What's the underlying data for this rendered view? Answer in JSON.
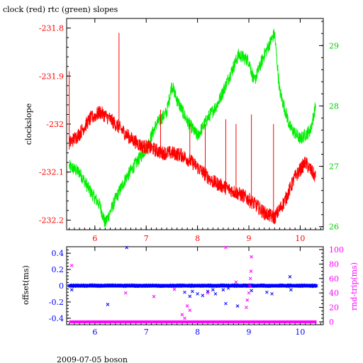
{
  "title": "clock (red) rtc (green) slopes",
  "footer": "2009-07-05 boson",
  "colors": {
    "clock": "#ff0000",
    "rtc": "#00ee00",
    "offset": "#0000ff",
    "rtt": "#ff00ff",
    "axis": "#000000"
  },
  "chart_data": [
    {
      "type": "line",
      "ylabel": "clockslope",
      "xlim": [
        5.45,
        10.45
      ],
      "ylim_left": [
        -232.22,
        -231.78
      ],
      "ylim_right": [
        25.95,
        29.45
      ],
      "x_ticks": [
        6,
        7,
        8,
        9,
        10
      ],
      "x_tick_labels": [
        "6",
        "7",
        "8",
        "9",
        "10"
      ],
      "y_left_ticks": [
        -231.8,
        -231.9,
        -232,
        -232.1,
        -232.2
      ],
      "y_left_tick_labels": [
        "-231.8",
        "-231.9",
        "-232",
        "-232.1",
        "-232.2"
      ],
      "y_right_ticks": [
        26,
        27,
        28,
        29
      ],
      "y_right_tick_labels": [
        "26",
        "27",
        "28",
        "29"
      ],
      "series": [
        {
          "axis": "left",
          "color_key": "clock",
          "x": [
            5.5,
            5.7,
            5.9,
            6.1,
            6.3,
            6.5,
            6.7,
            6.9,
            7.1,
            7.3,
            7.5,
            7.7,
            7.9,
            8.1,
            8.3,
            8.5,
            8.7,
            8.9,
            9.1,
            9.3,
            9.5,
            9.7,
            9.9,
            10.1,
            10.3
          ],
          "y": [
            -232.04,
            -232.02,
            -231.99,
            -231.975,
            -231.99,
            -232.01,
            -232.03,
            -232.045,
            -232.05,
            -232.06,
            -232.06,
            -232.065,
            -232.08,
            -232.1,
            -232.12,
            -232.13,
            -232.14,
            -232.15,
            -232.165,
            -232.185,
            -232.195,
            -232.16,
            -232.11,
            -232.08,
            -232.11
          ],
          "spikes": [
            {
              "x": 5.5,
              "y": -231.89
            },
            {
              "x": 6.47,
              "y": -231.81
            },
            {
              "x": 7.28,
              "y": -231.97
            },
            {
              "x": 7.85,
              "y": -232.0
            },
            {
              "x": 8.15,
              "y": -232.0
            },
            {
              "x": 8.55,
              "y": -231.99
            },
            {
              "x": 8.75,
              "y": -232.0
            },
            {
              "x": 9.05,
              "y": -231.98
            },
            {
              "x": 9.48,
              "y": -232.0
            }
          ]
        },
        {
          "axis": "right",
          "color_key": "rtc",
          "x": [
            5.5,
            5.7,
            5.9,
            6.1,
            6.2,
            6.4,
            6.6,
            6.8,
            7.0,
            7.2,
            7.4,
            7.5,
            7.6,
            7.8,
            8.0,
            8.2,
            8.4,
            8.6,
            8.8,
            9.0,
            9.1,
            9.3,
            9.5,
            9.6,
            9.8,
            10.0,
            10.2,
            10.3
          ],
          "y": [
            27.0,
            26.9,
            26.6,
            26.35,
            26.05,
            26.45,
            26.8,
            27.05,
            27.3,
            27.7,
            27.9,
            28.35,
            28.1,
            27.75,
            27.5,
            27.8,
            28.05,
            28.45,
            28.85,
            28.75,
            28.4,
            28.85,
            29.2,
            28.25,
            27.65,
            27.45,
            27.6,
            28.0
          ]
        }
      ]
    },
    {
      "type": "scatter",
      "ylabel_left": "offset(ms)",
      "ylabel_right": "rnd-trip(ms)",
      "xlim": [
        5.45,
        10.45
      ],
      "ylim_left": [
        -0.48,
        0.48
      ],
      "ylim_right": [
        -4,
        104
      ],
      "x_ticks": [
        6,
        7,
        8,
        9,
        10
      ],
      "x_tick_labels": [
        "6",
        "7",
        "8",
        "9",
        "10"
      ],
      "y_left_ticks": [
        0.4,
        0.2,
        0,
        -0.2,
        -0.4
      ],
      "y_left_tick_labels": [
        "0.4",
        "0.2",
        "0",
        "-0.2",
        "-0.4"
      ],
      "y_right_ticks": [
        0,
        20,
        40,
        60,
        80,
        100
      ],
      "y_right_tick_labels": [
        "0",
        "20",
        "40",
        "60",
        "80",
        "100"
      ],
      "series": [
        {
          "axis": "left",
          "color_key": "offset",
          "baseline": 0,
          "outliers_x": [
            5.55,
            6.25,
            6.62,
            7.75,
            7.85,
            7.9,
            8.0,
            8.1,
            8.2,
            8.3,
            8.35,
            8.5,
            8.55,
            8.6,
            8.78,
            9.05,
            9.35,
            9.45,
            9.8,
            9.82
          ],
          "outliers_y": [
            -0.05,
            -0.23,
            0.47,
            -0.08,
            -0.13,
            -0.07,
            -0.1,
            -0.12,
            -0.07,
            -0.05,
            -0.1,
            -0.05,
            -0.22,
            -0.03,
            -0.25,
            -0.06,
            -0.08,
            -0.1,
            0.11,
            -0.05
          ]
        },
        {
          "axis": "right",
          "color_key": "rtt",
          "baseline": 0,
          "outliers_x": [
            5.55,
            6.6,
            7.15,
            7.55,
            7.7,
            7.75,
            7.8,
            7.85,
            8.2,
            8.55,
            8.75,
            8.95,
            8.97,
            9.0,
            9.02,
            9.03,
            9.04,
            9.05
          ],
          "outliers_y": [
            78,
            40,
            35,
            45,
            10,
            5,
            22,
            16,
            40,
            103,
            55,
            20,
            30,
            40,
            50,
            60,
            70,
            90
          ]
        }
      ]
    }
  ]
}
